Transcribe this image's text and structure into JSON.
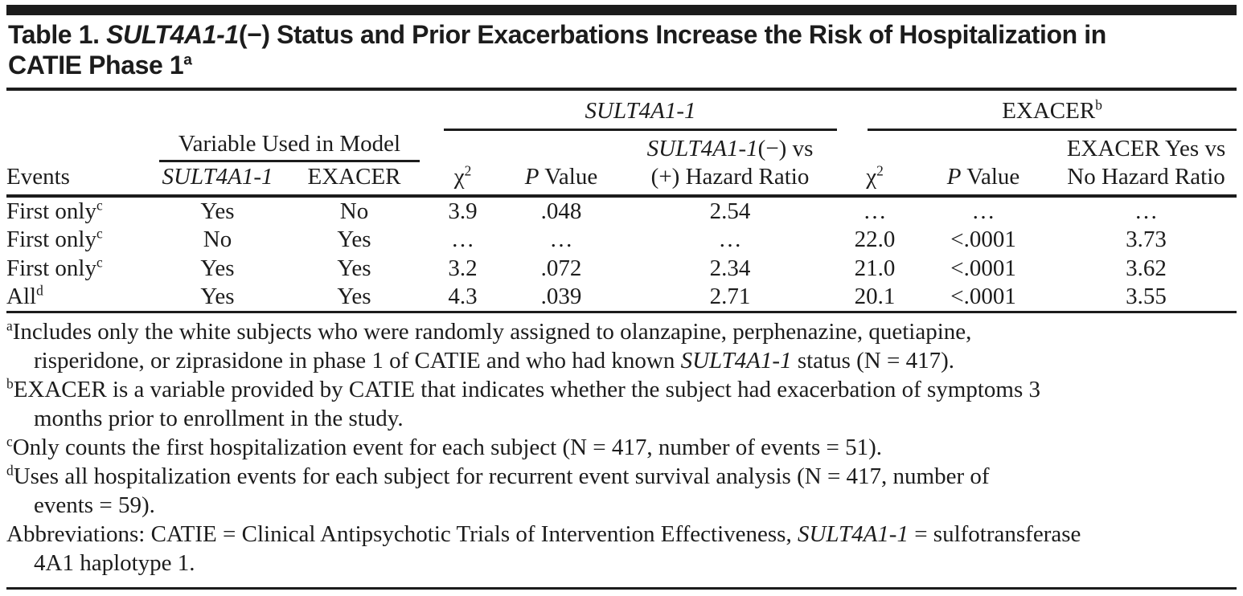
{
  "colors": {
    "ink": "#1c1c1c",
    "paper": "#ffffff"
  },
  "title": {
    "segments": [
      {
        "t": "Table 1. "
      },
      {
        "t": "SULT4A1-1",
        "i": true
      },
      {
        "t": "(−) Status and Prior Exacerbations Increase the Risk of Hospitalization in\nCATIE Phase 1"
      },
      {
        "t": "a",
        "sup": true
      }
    ]
  },
  "table": {
    "groups": {
      "variable": {
        "segments": [
          {
            "t": "Variable Used in Model"
          }
        ]
      },
      "sult": {
        "segments": [
          {
            "t": "SULT4A1-1",
            "i": true
          }
        ]
      },
      "exacer": {
        "segments": [
          {
            "t": "EXACER"
          },
          {
            "t": "b",
            "sup": true
          }
        ]
      }
    },
    "columns": {
      "events": "Events",
      "sult": {
        "segments": [
          {
            "t": "SULT4A1-1",
            "i": true
          }
        ]
      },
      "exacer": "EXACER",
      "chi2": {
        "segments": [
          {
            "t": "χ"
          },
          {
            "t": "2",
            "sup": true
          }
        ]
      },
      "p_value": {
        "segments": [
          {
            "t": "P",
            "i": true
          },
          {
            "t": " Value"
          }
        ]
      },
      "sult_hazard_line1": {
        "segments": [
          {
            "t": "SULT4A1-1",
            "i": true
          },
          {
            "t": "(−) vs"
          }
        ]
      },
      "sult_hazard_line2": "(+) Hazard Ratio",
      "exacer_hazard_line1": {
        "segments": [
          {
            "t": "EXACER Yes vs"
          }
        ]
      },
      "exacer_hazard_line2": "No Hazard Ratio"
    },
    "rows": [
      {
        "event": [
          {
            "t": "First only"
          },
          {
            "t": "c",
            "sup": true
          }
        ],
        "values": [
          "Yes",
          "No",
          "3.9",
          ".048",
          "2.54",
          "…",
          "…",
          "…"
        ]
      },
      {
        "event": [
          {
            "t": "First only"
          },
          {
            "t": "c",
            "sup": true
          }
        ],
        "values": [
          "No",
          "Yes",
          "…",
          "…",
          "…",
          "22.0",
          "<.0001",
          "3.73"
        ]
      },
      {
        "event": [
          {
            "t": "First only"
          },
          {
            "t": "c",
            "sup": true
          }
        ],
        "values": [
          "Yes",
          "Yes",
          "3.2",
          ".072",
          "2.34",
          "21.0",
          "<.0001",
          "3.62"
        ]
      },
      {
        "event": [
          {
            "t": "All"
          },
          {
            "t": "d",
            "sup": true
          }
        ],
        "values": [
          "Yes",
          "Yes",
          "4.3",
          ".039",
          "2.71",
          "20.1",
          "<.0001",
          "3.55"
        ]
      }
    ]
  },
  "footnotes": [
    {
      "marker": "a",
      "segments": [
        {
          "t": "Includes only the white subjects who were randomly assigned to olanzapine, perphenazine, quetiapine,\nrisperidone, or ziprasidone in phase 1 of CATIE and who had known "
        },
        {
          "t": "SULT4A1-1",
          "i": true
        },
        {
          "t": " status (N = 417)."
        }
      ]
    },
    {
      "marker": "b",
      "segments": [
        {
          "t": "EXACER is a variable provided by CATIE that indicates whether the subject had exacerbation of symptoms 3\nmonths prior to enrollment in the study."
        }
      ]
    },
    {
      "marker": "c",
      "segments": [
        {
          "t": "Only counts the first hospitalization event for each subject (N = 417, number of events = 51)."
        }
      ]
    },
    {
      "marker": "d",
      "segments": [
        {
          "t": "Uses all hospitalization events for each subject for recurrent event survival analysis (N = 417, number of\nevents = 59)."
        }
      ]
    },
    {
      "marker": "",
      "segments": [
        {
          "t": "Abbreviations: CATIE = Clinical Antipsychotic Trials of Intervention Effectiveness, "
        },
        {
          "t": "SULT4A1-1",
          "i": true
        },
        {
          "t": " = sulfotransferase\n4A1 haplotype 1."
        }
      ]
    }
  ]
}
